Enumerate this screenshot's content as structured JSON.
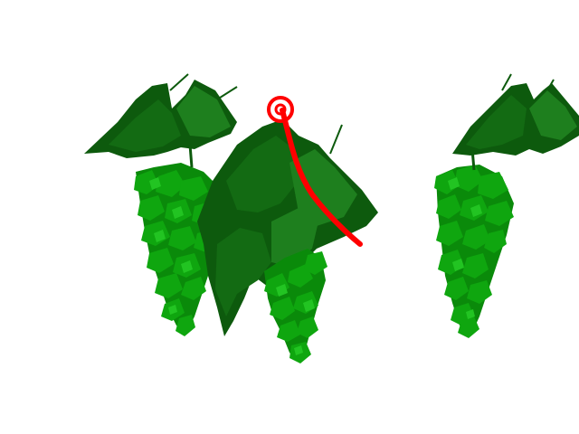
{
  "scene": {
    "background": "#ffffff",
    "colors": {
      "leaf_dark": "#0d5a0d",
      "leaf_mid": "#136b13",
      "leaf_light": "#1e7f1e",
      "grape_dark": "#0a8a0a",
      "grape_mid": "#0fa60f",
      "grape_light": "#22c422",
      "marker": "#ff0000"
    },
    "objects": [
      {
        "name": "grape-cluster-left",
        "kind": "grape-cluster"
      },
      {
        "name": "grape-cluster-center",
        "kind": "grape-cluster"
      },
      {
        "name": "grape-cluster-right",
        "kind": "grape-cluster"
      },
      {
        "name": "vine-leaf-left",
        "kind": "leaf"
      },
      {
        "name": "vine-leaf-center",
        "kind": "leaf"
      },
      {
        "name": "vine-leaf-right",
        "kind": "leaf"
      }
    ],
    "marker": {
      "shape": "circle-with-trajectory-line",
      "color": "red"
    }
  }
}
